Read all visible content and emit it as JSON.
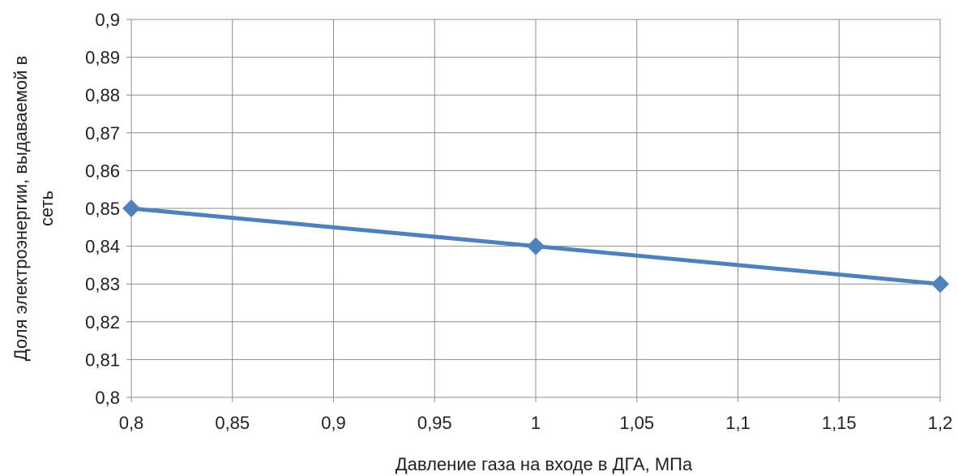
{
  "chart_data": {
    "type": "line",
    "title": "",
    "xlabel": "Давление газа на входе в ДГА, МПа",
    "ylabel_lines": [
      "Доля электроэнергии, выдаваемой в",
      "сеть"
    ],
    "x_ticks": [
      "0,8",
      "0,85",
      "0,9",
      "0,95",
      "1",
      "1,05",
      "1,1",
      "1,15",
      "1,2"
    ],
    "y_ticks": [
      "0,8",
      "0,81",
      "0,82",
      "0,83",
      "0,84",
      "0,85",
      "0,86",
      "0,87",
      "0,88",
      "0,89",
      "0,9"
    ],
    "xlim": [
      0.8,
      1.2
    ],
    "ylim": [
      0.8,
      0.9
    ],
    "grid": true,
    "legend": "none",
    "series": [
      {
        "x": [
          0.8,
          1.0,
          1.2
        ],
        "y": [
          0.85,
          0.84,
          0.83
        ],
        "color": "#4f81bd",
        "marker": "diamond"
      }
    ]
  }
}
